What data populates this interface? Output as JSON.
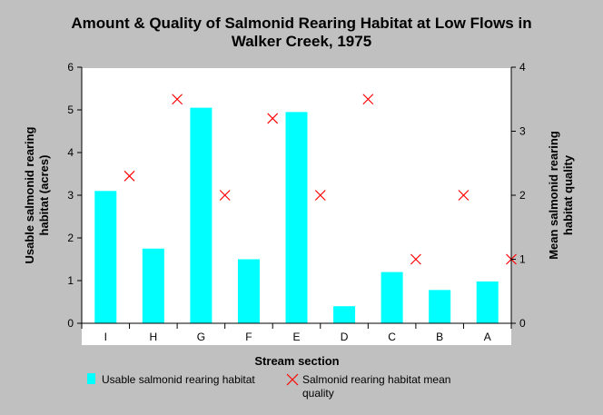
{
  "chart_data": {
    "type": "bar",
    "title_lines": [
      "Amount & Quality of Salmonid Rearing Habitat at Low Flows in",
      "Walker Creek, 1975"
    ],
    "xlabel": "Stream section",
    "ylabel_left_lines": [
      "Usable salmonid rearing",
      "habitat (acres)"
    ],
    "ylabel_right_lines": [
      "Mean salmonid rearing",
      "habitat quality"
    ],
    "categories": [
      "I",
      "H",
      "G",
      "F",
      "E",
      "D",
      "C",
      "B",
      "A"
    ],
    "ylim_left": [
      0,
      6
    ],
    "yticks_left": [
      "0",
      "1",
      "2",
      "3",
      "4",
      "5",
      "6"
    ],
    "ylim_right": [
      0,
      4
    ],
    "yticks_right": [
      "0",
      "1",
      "2",
      "3",
      "4"
    ],
    "grid": false,
    "legend_position": "bottom",
    "series": [
      {
        "name": "Usable salmonid rearing habitat",
        "type": "bar",
        "axis": "left",
        "color": "#00ffff",
        "values": [
          3.1,
          1.75,
          5.05,
          1.5,
          4.95,
          0.4,
          1.2,
          0.78,
          0.98
        ]
      },
      {
        "name_lines": [
          "Salmonid rearing habitat mean",
          "quality"
        ],
        "type": "scatter",
        "marker": "x",
        "axis": "right",
        "color": "#ff0000",
        "values": [
          2.3,
          3.5,
          2.0,
          3.2,
          2.0,
          3.5,
          1.0,
          2.0,
          1.0
        ]
      }
    ]
  }
}
